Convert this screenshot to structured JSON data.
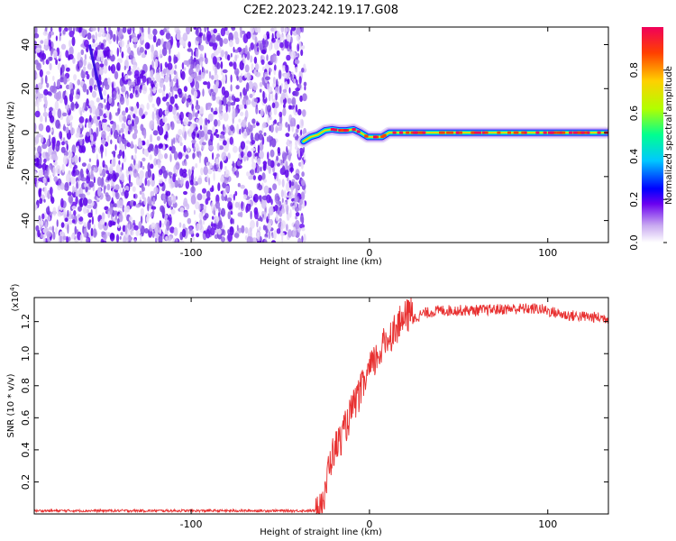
{
  "title": "C2E2.2023.242.19.17.G08",
  "chart_data": [
    {
      "type": "heatmap",
      "xlabel": "Height of straight line (km)",
      "ylabel": "Frequency (Hz)",
      "xlim": [
        -188,
        134
      ],
      "ylim": [
        -50,
        48
      ],
      "x_ticks": [
        -100,
        0,
        100
      ],
      "y_ticks": [
        -40,
        -20,
        0,
        20,
        40
      ],
      "colorbar": {
        "label": "Normalized spectral amplitude",
        "range": [
          0,
          1
        ],
        "ticks": [
          0.0,
          0.2,
          0.4,
          0.6,
          0.8
        ],
        "colormap": [
          "#ffffff",
          "#c8a8f0",
          "#6a00f0",
          "#0000ff",
          "#00c8ff",
          "#00ff90",
          "#b0ff00",
          "#ffd000",
          "#ff4000",
          "#f0005a"
        ]
      },
      "noise_region_x": [
        -188,
        -36
      ],
      "ridge": [
        [
          -37,
          -4
        ],
        [
          -33,
          -2
        ],
        [
          -29,
          -1
        ],
        [
          -25,
          1
        ],
        [
          -21,
          1.5
        ],
        [
          -17,
          1
        ],
        [
          -13,
          1
        ],
        [
          -9,
          1.5
        ],
        [
          -5,
          0
        ],
        [
          -1,
          -2
        ],
        [
          3,
          -2
        ],
        [
          7,
          -2
        ],
        [
          11,
          0
        ],
        [
          20,
          0
        ],
        [
          40,
          0
        ],
        [
          60,
          0
        ],
        [
          80,
          0
        ],
        [
          100,
          0
        ],
        [
          120,
          0
        ],
        [
          134,
          0
        ]
      ],
      "streak": [
        [
          -157,
          40
        ],
        [
          -150,
          15
        ]
      ]
    },
    {
      "type": "line",
      "xlabel": "Height of straight line (km)",
      "ylabel": "SNR (10 * v/v)",
      "multiplier": "(x10",
      "multiplier_exp": "4",
      "multiplier_close": ")",
      "xlim": [
        -188,
        134
      ],
      "ylim": [
        0,
        1.35
      ],
      "x_ticks": [
        -100,
        0,
        100
      ],
      "y_ticks": [
        0.2,
        0.4,
        0.6,
        0.8,
        1.0,
        1.2
      ],
      "color": "#e83030",
      "profile": [
        [
          -188,
          0.02
        ],
        [
          -30,
          0.02
        ],
        [
          -25,
          0.05
        ],
        [
          -23,
          0.25
        ],
        [
          -20,
          0.35
        ],
        [
          -15,
          0.45
        ],
        [
          -10,
          0.6
        ],
        [
          -5,
          0.72
        ],
        [
          0,
          0.85
        ],
        [
          5,
          0.95
        ],
        [
          10,
          1.05
        ],
        [
          15,
          1.12
        ],
        [
          20,
          1.18
        ],
        [
          25,
          1.22
        ],
        [
          30,
          1.25
        ],
        [
          40,
          1.27
        ],
        [
          60,
          1.27
        ],
        [
          80,
          1.28
        ],
        [
          95,
          1.28
        ],
        [
          110,
          1.24
        ],
        [
          134,
          1.22
        ]
      ]
    }
  ]
}
